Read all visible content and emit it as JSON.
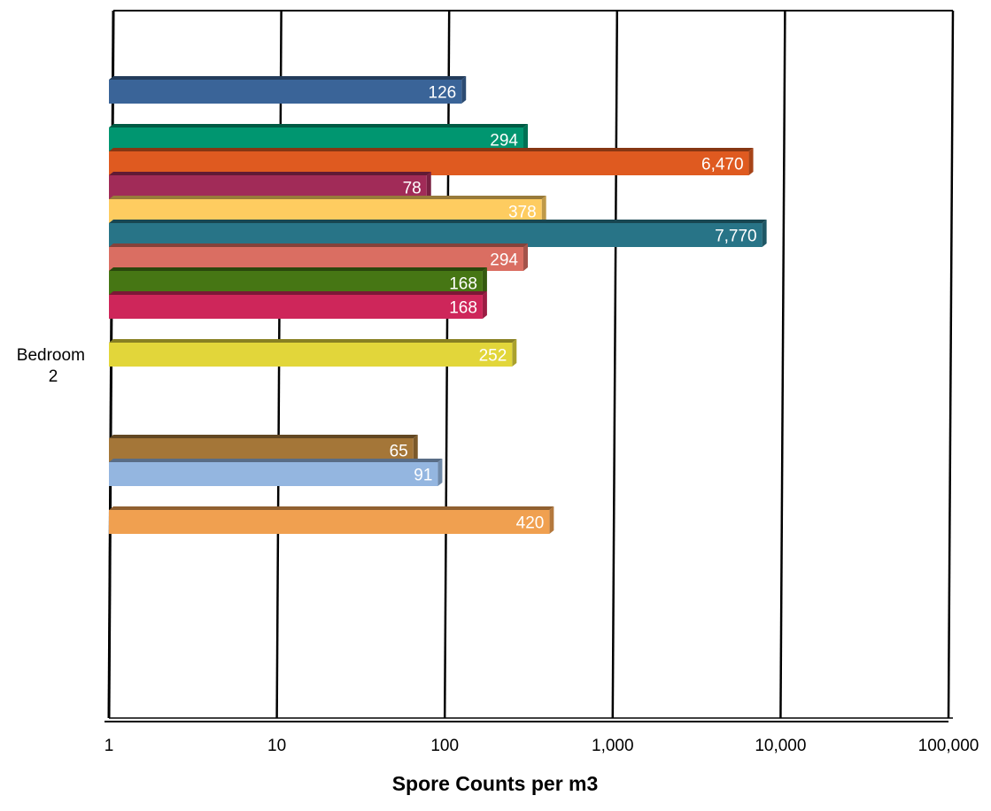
{
  "chart_data": {
    "type": "bar",
    "orientation": "horizontal",
    "x_scale": "log",
    "xlim": [
      1,
      100000
    ],
    "xlabel": "Spore Counts per m3",
    "x_tick_labels": [
      "1",
      "10",
      "100",
      "1,000",
      "10,000",
      "100,000"
    ],
    "category_label": "Bedroom 2",
    "grid": true,
    "series": [
      {
        "value": 126,
        "label": "126",
        "color": "#3A6498"
      },
      {
        "value": 294,
        "label": "294",
        "color": "#009670"
      },
      {
        "value": 6470,
        "label": "6,470",
        "color": "#DF5A20"
      },
      {
        "value": 78,
        "label": "78",
        "color": "#A12B58"
      },
      {
        "value": 378,
        "label": "378",
        "color": "#FECC60"
      },
      {
        "value": 7770,
        "label": "7,770",
        "color": "#287487"
      },
      {
        "value": 294,
        "label": "294",
        "color": "#DA6E62"
      },
      {
        "value": 168,
        "label": "168",
        "color": "#467614"
      },
      {
        "value": 168,
        "label": "168",
        "color": "#CE265A"
      },
      {
        "value": 252,
        "label": "252",
        "color": "#E2D63A"
      },
      {
        "value": 65,
        "label": "65",
        "color": "#A47638"
      },
      {
        "value": 91,
        "label": "91",
        "color": "#94B6E0"
      },
      {
        "value": 420,
        "label": "420",
        "color": "#F0A050"
      }
    ]
  }
}
